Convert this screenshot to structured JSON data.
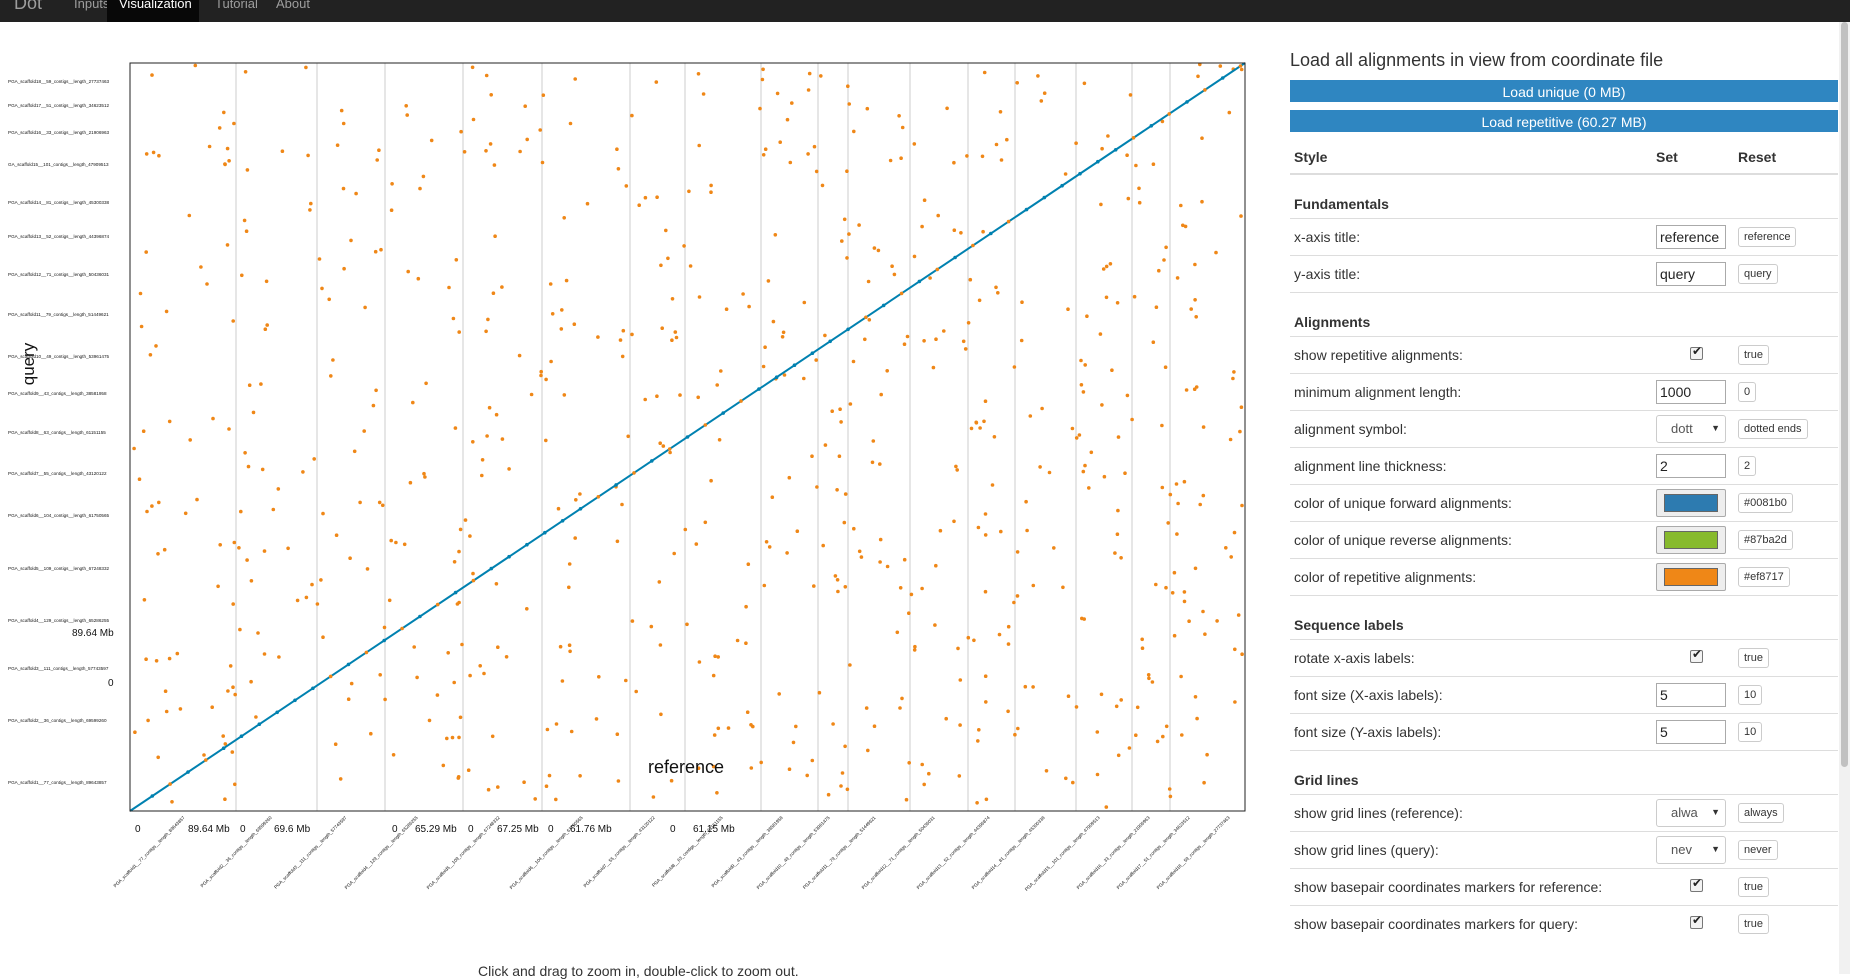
{
  "nav": {
    "brand": "Dot",
    "tabs": [
      "Inputs",
      "Visualization",
      "Tutorial",
      "About"
    ],
    "active_tab": "Visualization"
  },
  "plot": {
    "caption": "Click and drag to zoom in, double-click to zoom out.",
    "x_title": "reference",
    "y_title": "query",
    "x_coord_labels": [
      "0",
      "89.64 Mb",
      "0",
      "69.6 Mb",
      "0",
      "65.29 Mb",
      "0",
      "67.25 Mb",
      "0",
      "61.76 Mb",
      "0",
      "61.15 Mb"
    ],
    "y_coord_labels": [
      "89.64 Mb",
      "0"
    ],
    "y_labels": [
      "PGA_scaffold18__59_contigs__length_27737463",
      "PGA_scaffold17__51_contigs__length_34623512",
      "PGA_scaffold16__33_contigs__length_21906963",
      "GA_scaffold15__101_contigs__length_47909513",
      "PGA_scaffold14__81_contigs__length_45300338",
      "PGA_scaffold13__52_contigs__length_44396874",
      "PGA_scaffold12__71_contigs__length_50436031",
      "PGA_scaffold11__79_contigs__length_51449621",
      "PGA_scaffold10__49_contigs__length_53961475",
      "PGA_scaffold9__43_contigs__length_38581958",
      "PGA_scaffold8__63_contigs__length_61151155",
      "PGA_scaffold7__55_contigs__length_43120122",
      "PGA_scaffold6__104_contigs__length_61750565",
      "PGA_scaffold5__109_contigs__length_67248332",
      "PGA_scaffold4__129_contigs__length_65286255",
      "PGA_scaffold3__111_contigs__length_57743597",
      "PGA_scaffold2__36_contigs__length_69599260",
      "PGA_scaffold1__77_contigs__length_89643857"
    ],
    "x_labels": [
      "PGA_scaffold1__77_contigs__length_89643857",
      "PGA_scaffold2__36_contigs__length_69599260",
      "PGA_scaffold3__111_contigs__length_57743597",
      "PGA_scaffold4__129_contigs__length_65286255",
      "PGA_scaffold5__109_contigs__length_67248332",
      "PGA_scaffold6__104_contigs__length_61750565",
      "PGA_scaffold7__55_contigs__length_43120122",
      "PGA_scaffold8__63_contigs__length_61151155",
      "PGA_scaffold9__43_contigs__length_38581958",
      "PGA_scaffold10__49_contigs__length_53961475",
      "PGA_scaffold11__79_contigs__length_51449621",
      "PGA_scaffold12__71_contigs__length_50436031",
      "PGA_scaffold13__52_contigs__length_44396874",
      "PGA_scaffold14__81_contigs__length_45300338",
      "PGA_scaffold15__101_contigs__length_47909513",
      "PGA_scaffold16__33_contigs__length_21906963",
      "PGA_scaffold17__51_contigs__length_34623512",
      "PGA_scaffold18__59_contigs__length_27737463"
    ],
    "colors": {
      "unique_forward": "#0081b0",
      "repetitive": "#ef8717",
      "gridline": "#cccccc"
    }
  },
  "panel": {
    "title": "Load all alignments in view from coordinate file",
    "load_unique": "Load unique (0 MB)",
    "load_repetitive": "Load repetitive (60.27 MB)",
    "headers": {
      "style": "Style",
      "set": "Set",
      "reset": "Reset"
    },
    "sections": {
      "fundamentals": "Fundamentals",
      "alignments": "Alignments",
      "sequence_labels": "Sequence labels",
      "grid_lines": "Grid lines"
    },
    "rows": {
      "x_axis_title": {
        "label": "x-axis title:",
        "value": "reference",
        "reset": "reference"
      },
      "y_axis_title": {
        "label": "y-axis title:",
        "value": "query",
        "reset": "query"
      },
      "show_repetitive": {
        "label": "show repetitive alignments:",
        "checked": true,
        "reset": "true"
      },
      "min_length": {
        "label": "minimum alignment length:",
        "value": "1000",
        "reset": "0"
      },
      "symbol": {
        "label": "alignment symbol:",
        "value": "dott",
        "reset": "dotted ends"
      },
      "thickness": {
        "label": "alignment line thickness:",
        "value": "2",
        "reset": "2"
      },
      "color_forward": {
        "label": "color of unique forward alignments:",
        "color": "#2d7bb0",
        "reset": "#0081b0"
      },
      "color_reverse": {
        "label": "color of unique reverse alignments:",
        "color": "#87ba2d",
        "reset": "#87ba2d"
      },
      "color_repetitive": {
        "label": "color of repetitive alignments:",
        "color": "#ef8717",
        "reset": "#ef8717"
      },
      "rotate_x": {
        "label": "rotate x-axis labels:",
        "checked": true,
        "reset": "true"
      },
      "font_x": {
        "label": "font size (X-axis labels):",
        "value": "5",
        "reset": "10"
      },
      "font_y": {
        "label": "font size (Y-axis labels):",
        "value": "5",
        "reset": "10"
      },
      "grid_ref": {
        "label": "show grid lines (reference):",
        "value": "alwa",
        "reset": "always"
      },
      "grid_query": {
        "label": "show grid lines (query):",
        "value": "nev",
        "reset": "never"
      },
      "bp_ref": {
        "label": "show basepair coordinates markers for reference:",
        "checked": true,
        "reset": "true"
      },
      "bp_query": {
        "label": "show basepair coordinates markers for query:",
        "checked": true,
        "reset": "true"
      }
    }
  }
}
